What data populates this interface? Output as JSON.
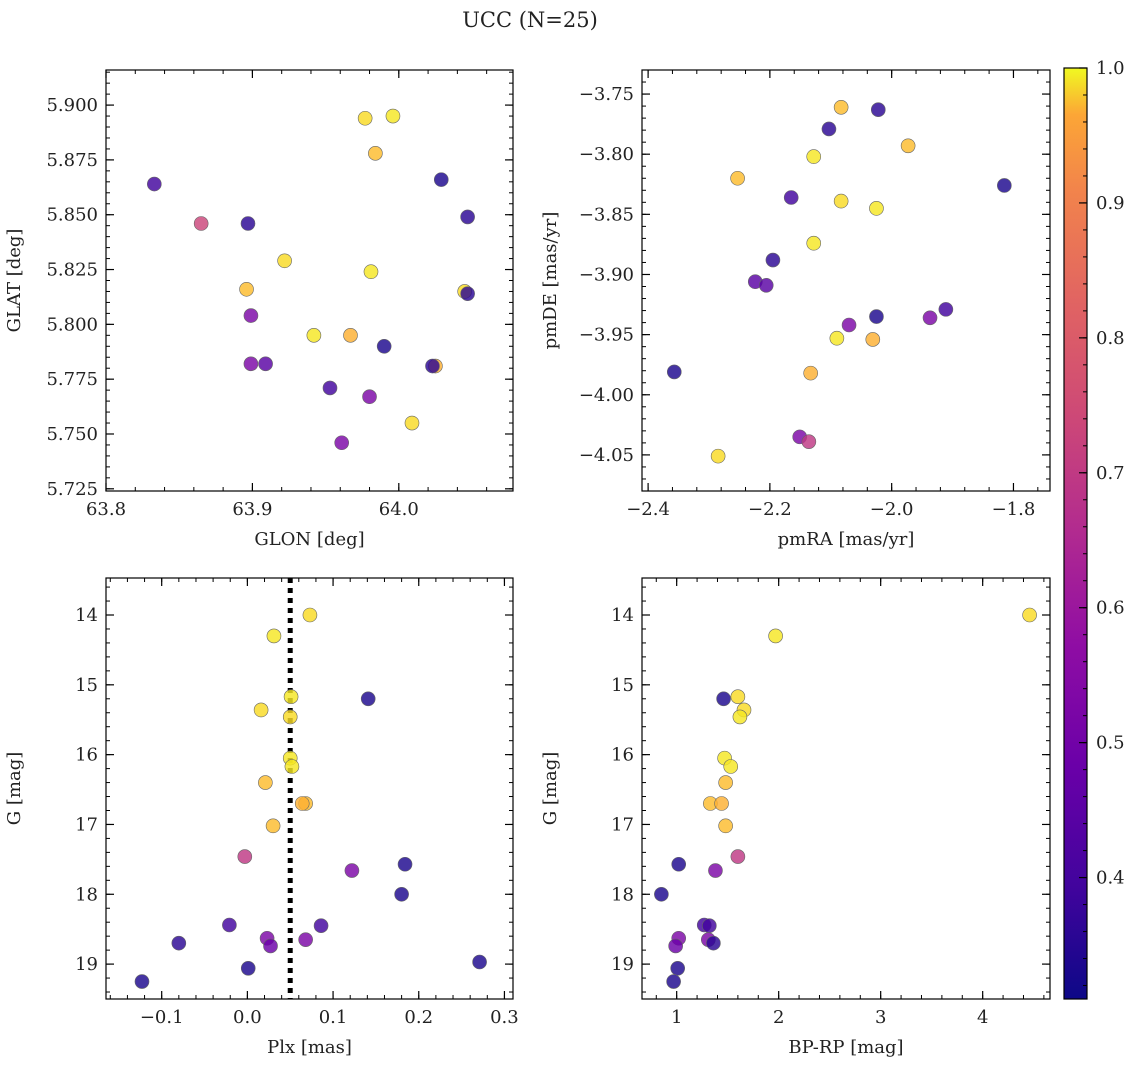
{
  "figure": {
    "suptitle": "UCC (N=25)"
  },
  "chart_data": [
    {
      "type": "scatter",
      "panel": "top-left",
      "xlabel": "GLON [deg]",
      "ylabel": "GLAT [deg]",
      "xlim": [
        63.8,
        64.078
      ],
      "ylim": [
        5.724,
        5.916
      ],
      "xticks": [
        63.8,
        63.9,
        64.0
      ],
      "xticklabels": [
        "63.8",
        "63.9",
        "64.0"
      ],
      "yticks": [
        5.725,
        5.75,
        5.775,
        5.8,
        5.825,
        5.85,
        5.875,
        5.9
      ],
      "yticklabels": [
        "5.725",
        "5.750",
        "5.775",
        "5.800",
        "5.825",
        "5.850",
        "5.875",
        "5.900"
      ],
      "x": [
        63.977,
        63.996,
        63.984,
        64.029,
        63.833,
        63.865,
        63.897,
        64.047,
        63.922,
        63.981,
        63.896,
        64.045,
        64.047,
        63.899,
        63.942,
        63.967,
        63.99,
        64.025,
        64.023,
        63.899,
        63.909,
        63.953,
        63.98,
        64.009,
        63.961
      ],
      "y": [
        5.894,
        5.895,
        5.878,
        5.866,
        5.864,
        5.846,
        5.846,
        5.849,
        5.829,
        5.824,
        5.816,
        5.815,
        5.814,
        5.804,
        5.795,
        5.795,
        5.79,
        5.781,
        5.781,
        5.782,
        5.782,
        5.771,
        5.767,
        5.755,
        5.746
      ],
      "c": [
        0.95,
        0.97,
        0.9,
        0.33,
        0.38,
        0.65,
        0.35,
        0.35,
        0.95,
        0.97,
        0.9,
        0.95,
        0.35,
        0.48,
        0.97,
        0.88,
        0.33,
        0.88,
        0.35,
        0.48,
        0.42,
        0.38,
        0.48,
        0.95,
        0.48
      ]
    },
    {
      "type": "scatter",
      "panel": "top-right",
      "xlabel": "pmRA [mas/yr]",
      "ylabel": "pmDE [mas/yr]",
      "xlim": [
        -2.41,
        -1.74
      ],
      "ylim": [
        -4.08,
        -3.73
      ],
      "xticks": [
        -2.4,
        -2.2,
        -2.0,
        -1.8
      ],
      "xticklabels": [
        "−2.4",
        "−2.2",
        "−2.0",
        "−1.8"
      ],
      "yticks": [
        -4.05,
        -4.0,
        -3.95,
        -3.9,
        -3.85,
        -3.8,
        -3.75
      ],
      "yticklabels": [
        "−4.05",
        "−4.00",
        "−3.95",
        "−3.90",
        "−3.85",
        "−3.80",
        "−3.75"
      ],
      "x": [
        -2.083,
        -2.022,
        -2.103,
        -1.973,
        -2.128,
        -2.253,
        -2.165,
        -1.815,
        -2.083,
        -2.025,
        -2.128,
        -2.195,
        -2.224,
        -2.206,
        -2.025,
        -1.911,
        -1.937,
        -2.07,
        -2.031,
        -2.09,
        -2.357,
        -2.133,
        -2.151,
        -2.136,
        -2.285
      ],
      "y": [
        -3.761,
        -3.763,
        -3.779,
        -3.793,
        -3.802,
        -3.82,
        -3.836,
        -3.826,
        -3.839,
        -3.845,
        -3.874,
        -3.888,
        -3.906,
        -3.909,
        -3.935,
        -3.929,
        -3.936,
        -3.942,
        -3.954,
        -3.953,
        -3.981,
        -3.982,
        -4.035,
        -4.039,
        -4.051
      ],
      "c": [
        0.9,
        0.35,
        0.35,
        0.9,
        0.97,
        0.9,
        0.38,
        0.33,
        0.95,
        0.97,
        0.97,
        0.35,
        0.42,
        0.42,
        0.33,
        0.38,
        0.48,
        0.48,
        0.88,
        0.97,
        0.33,
        0.88,
        0.48,
        0.62,
        0.95
      ]
    },
    {
      "type": "scatter",
      "panel": "bottom-left",
      "xlabel": "Plx [mas]",
      "ylabel": "G [mag]",
      "xlim": [
        -0.165,
        0.31
      ],
      "ylim": [
        19.5,
        13.47
      ],
      "yinverted": true,
      "xticks": [
        -0.1,
        0.0,
        0.1,
        0.2,
        0.3
      ],
      "xticklabels": [
        "−0.1",
        "0.0",
        "0.1",
        "0.2",
        "0.3"
      ],
      "yticks": [
        14,
        15,
        16,
        17,
        18,
        19
      ],
      "yticklabels": [
        "14",
        "15",
        "16",
        "17",
        "18",
        "19"
      ],
      "vline": 0.05,
      "x": [
        0.073,
        0.031,
        0.051,
        0.141,
        0.016,
        0.05,
        0.05,
        0.052,
        0.021,
        0.068,
        0.064,
        0.03,
        -0.003,
        0.122,
        0.184,
        0.18,
        -0.021,
        0.023,
        0.027,
        0.086,
        0.068,
        -0.08,
        0.271,
        0.001,
        -0.123
      ],
      "y": [
        14.0,
        14.3,
        15.17,
        15.2,
        15.36,
        15.46,
        16.05,
        16.17,
        16.4,
        16.7,
        16.7,
        17.02,
        17.46,
        17.66,
        17.57,
        18.0,
        18.44,
        18.63,
        18.74,
        18.45,
        18.65,
        18.7,
        18.97,
        19.06,
        19.25
      ],
      "c": [
        0.95,
        0.97,
        0.97,
        0.33,
        0.95,
        0.95,
        0.97,
        0.97,
        0.9,
        0.9,
        0.88,
        0.9,
        0.62,
        0.48,
        0.33,
        0.33,
        0.38,
        0.48,
        0.45,
        0.38,
        0.48,
        0.35,
        0.33,
        0.33,
        0.33
      ]
    },
    {
      "type": "scatter",
      "panel": "bottom-right",
      "xlabel": "BP-RP [mag]",
      "ylabel": "G [mag]",
      "xlim": [
        0.66,
        4.66
      ],
      "ylim": [
        19.5,
        13.47
      ],
      "yinverted": true,
      "xticks": [
        1,
        2,
        3,
        4
      ],
      "xticklabels": [
        "1",
        "2",
        "3",
        "4"
      ],
      "yticks": [
        14,
        15,
        16,
        17,
        18,
        19
      ],
      "yticklabels": [
        "14",
        "15",
        "16",
        "17",
        "18",
        "19"
      ],
      "x": [
        4.46,
        1.97,
        1.6,
        1.46,
        1.66,
        1.62,
        1.47,
        1.53,
        1.48,
        1.33,
        1.44,
        1.48,
        1.6,
        1.38,
        1.02,
        0.85,
        1.27,
        1.02,
        0.99,
        1.32,
        1.31,
        1.36,
        1.01,
        0.97
      ],
      "y": [
        14.0,
        14.3,
        15.17,
        15.2,
        15.36,
        15.46,
        16.05,
        16.17,
        16.4,
        16.7,
        16.7,
        17.02,
        17.46,
        17.66,
        17.57,
        18.0,
        18.44,
        18.63,
        18.74,
        18.45,
        18.65,
        18.7,
        19.06,
        19.25
      ],
      "c": [
        0.95,
        0.97,
        0.95,
        0.33,
        0.95,
        0.97,
        0.97,
        0.97,
        0.9,
        0.9,
        0.88,
        0.9,
        0.62,
        0.48,
        0.33,
        0.33,
        0.38,
        0.48,
        0.45,
        0.38,
        0.48,
        0.35,
        0.33,
        0.33
      ]
    }
  ],
  "colorbar": {
    "colormap": "plasma",
    "range": [
      0.31,
      1.0
    ],
    "ticks": [
      0.4,
      0.5,
      0.6,
      0.7,
      0.8,
      0.9,
      1.0
    ],
    "ticklabels": [
      "0.4",
      "0.5",
      "0.6",
      "0.7",
      "0.8",
      "0.9",
      "1.0"
    ]
  }
}
